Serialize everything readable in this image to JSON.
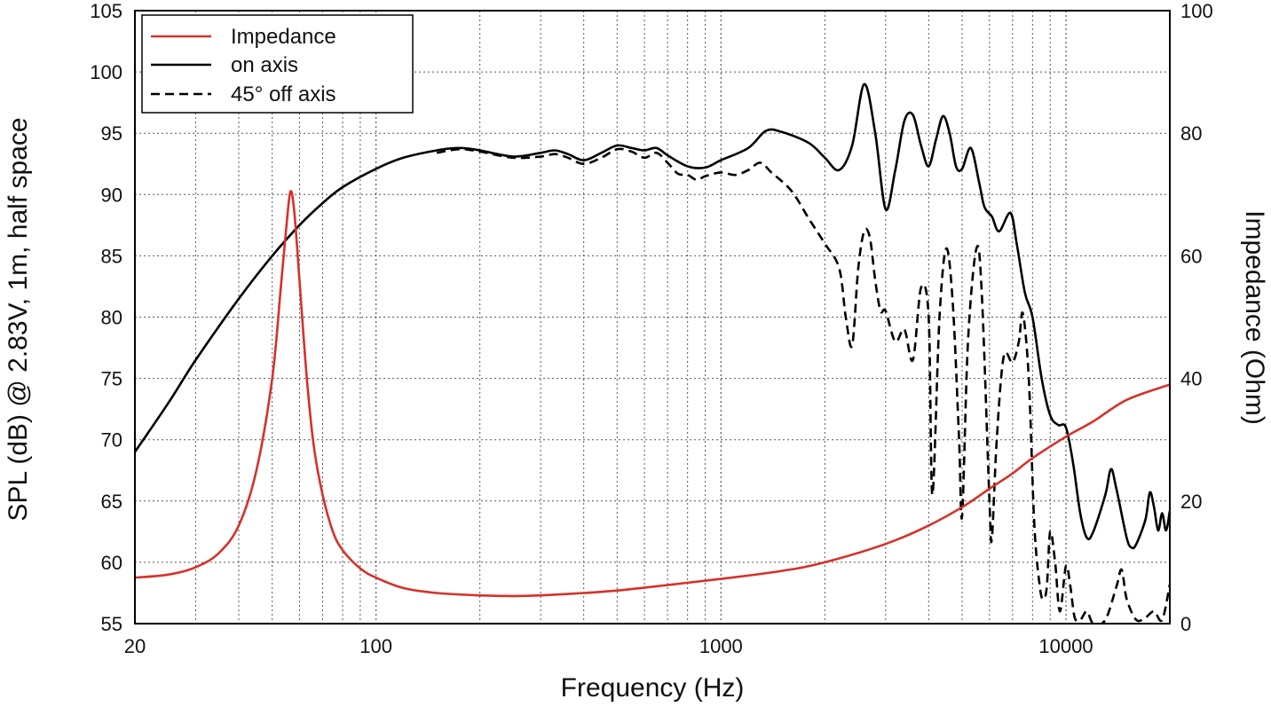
{
  "colors": {
    "impedance": "#d6312a",
    "spl": "#000000",
    "grid": "#555555"
  },
  "chart_data": {
    "type": "line",
    "x_scale": "log",
    "xlim": [
      20,
      20000
    ],
    "ylim": [
      55,
      105
    ],
    "y2lim": [
      0,
      100
    ],
    "xlabel": "Frequency (Hz)",
    "ylabel": "SPL (dB) @ 2.83V, 1m, half space",
    "y2label": "Impedance (Ohm)",
    "x_ticks": [
      20,
      100,
      1000,
      10000
    ],
    "x_tick_labels": [
      "20",
      "100",
      "1000",
      "10000"
    ],
    "y_ticks": [
      55,
      60,
      65,
      70,
      75,
      80,
      85,
      90,
      95,
      100,
      105
    ],
    "y2_ticks": [
      0,
      20,
      40,
      60,
      80,
      100
    ],
    "grid": true,
    "legend_position": "top-left",
    "series": [
      {
        "name": "Impedance",
        "axis": "right",
        "style": "solid",
        "points": [
          [
            20,
            7.5
          ],
          [
            25,
            8
          ],
          [
            30,
            9.2
          ],
          [
            35,
            11.5
          ],
          [
            40,
            16
          ],
          [
            45,
            25
          ],
          [
            50,
            40
          ],
          [
            53,
            55
          ],
          [
            55,
            65
          ],
          [
            56.5,
            70.5
          ],
          [
            58,
            67
          ],
          [
            60,
            56
          ],
          [
            63,
            40
          ],
          [
            66,
            29
          ],
          [
            70,
            21
          ],
          [
            75,
            15
          ],
          [
            80,
            12
          ],
          [
            90,
            9
          ],
          [
            100,
            7.5
          ],
          [
            120,
            5.8
          ],
          [
            150,
            5
          ],
          [
            200,
            4.6
          ],
          [
            250,
            4.5
          ],
          [
            300,
            4.6
          ],
          [
            400,
            5
          ],
          [
            500,
            5.4
          ],
          [
            700,
            6.3
          ],
          [
            1000,
            7.3
          ],
          [
            1500,
            8.6
          ],
          [
            2000,
            10
          ],
          [
            3000,
            13
          ],
          [
            4000,
            16
          ],
          [
            5000,
            19
          ],
          [
            6000,
            22
          ],
          [
            7000,
            24.5
          ],
          [
            8000,
            27
          ],
          [
            10000,
            30.5
          ],
          [
            12000,
            33
          ],
          [
            15000,
            36.5
          ],
          [
            20000,
            39
          ]
        ]
      },
      {
        "name": "on axis",
        "axis": "left",
        "style": "solid",
        "points": [
          [
            20,
            69
          ],
          [
            25,
            73
          ],
          [
            30,
            76.5
          ],
          [
            40,
            81.5
          ],
          [
            50,
            85
          ],
          [
            60,
            87.5
          ],
          [
            70,
            89.3
          ],
          [
            80,
            90.6
          ],
          [
            100,
            92.1
          ],
          [
            120,
            93
          ],
          [
            150,
            93.6
          ],
          [
            175,
            93.8
          ],
          [
            200,
            93.6
          ],
          [
            250,
            93.1
          ],
          [
            300,
            93.4
          ],
          [
            330,
            93.6
          ],
          [
            360,
            93.3
          ],
          [
            400,
            92.8
          ],
          [
            450,
            93.4
          ],
          [
            500,
            94
          ],
          [
            550,
            93.8
          ],
          [
            600,
            93.6
          ],
          [
            650,
            93.8
          ],
          [
            700,
            93.2
          ],
          [
            800,
            92.3
          ],
          [
            900,
            92.2
          ],
          [
            1000,
            92.8
          ],
          [
            1200,
            93.8
          ],
          [
            1350,
            95.2
          ],
          [
            1500,
            95.1
          ],
          [
            1800,
            94.2
          ],
          [
            2000,
            93
          ],
          [
            2200,
            92
          ],
          [
            2400,
            94
          ],
          [
            2600,
            99
          ],
          [
            2800,
            95
          ],
          [
            3000,
            88.8
          ],
          [
            3200,
            92
          ],
          [
            3400,
            96
          ],
          [
            3600,
            96.5
          ],
          [
            3800,
            94
          ],
          [
            4000,
            92.3
          ],
          [
            4200,
            94.5
          ],
          [
            4400,
            96.4
          ],
          [
            4600,
            95
          ],
          [
            4800,
            92.3
          ],
          [
            5000,
            92.1
          ],
          [
            5300,
            93.8
          ],
          [
            5600,
            91
          ],
          [
            5800,
            89
          ],
          [
            6100,
            88.2
          ],
          [
            6400,
            87
          ],
          [
            6900,
            88.5
          ],
          [
            7200,
            86
          ],
          [
            7600,
            82
          ],
          [
            8000,
            80
          ],
          [
            8500,
            75
          ],
          [
            9000,
            72
          ],
          [
            9500,
            71.2
          ],
          [
            10000,
            71
          ],
          [
            10500,
            68
          ],
          [
            11000,
            64
          ],
          [
            11500,
            62
          ],
          [
            12000,
            62.5
          ],
          [
            13000,
            65.5
          ],
          [
            13500,
            67.6
          ],
          [
            14000,
            66
          ],
          [
            15000,
            62
          ],
          [
            15500,
            61.2
          ],
          [
            16000,
            61.5
          ],
          [
            17000,
            63.5
          ],
          [
            17500,
            65.7
          ],
          [
            18000,
            64.5
          ],
          [
            18500,
            62.6
          ],
          [
            19000,
            64
          ],
          [
            19500,
            62.6
          ],
          [
            20000,
            64.2
          ]
        ]
      },
      {
        "name": "45° off axis",
        "axis": "left",
        "style": "dashed",
        "points": [
          [
            150,
            93.4
          ],
          [
            175,
            93.7
          ],
          [
            200,
            93.5
          ],
          [
            250,
            93
          ],
          [
            300,
            93.1
          ],
          [
            330,
            93.3
          ],
          [
            360,
            93
          ],
          [
            400,
            92.5
          ],
          [
            450,
            93
          ],
          [
            500,
            93.7
          ],
          [
            550,
            93.5
          ],
          [
            600,
            93
          ],
          [
            650,
            93.4
          ],
          [
            700,
            92.6
          ],
          [
            750,
            91.7
          ],
          [
            800,
            91.6
          ],
          [
            850,
            91.2
          ],
          [
            900,
            91.5
          ],
          [
            1000,
            91.8
          ],
          [
            1100,
            91.6
          ],
          [
            1200,
            92
          ],
          [
            1300,
            92.6
          ],
          [
            1400,
            91.8
          ],
          [
            1600,
            90.3
          ],
          [
            1800,
            88
          ],
          [
            2000,
            86
          ],
          [
            2200,
            84
          ],
          [
            2300,
            80
          ],
          [
            2400,
            77.7
          ],
          [
            2500,
            84
          ],
          [
            2600,
            87
          ],
          [
            2700,
            86.5
          ],
          [
            2800,
            83
          ],
          [
            2900,
            80.5
          ],
          [
            3000,
            80.5
          ],
          [
            3200,
            78
          ],
          [
            3400,
            79
          ],
          [
            3600,
            76.5
          ],
          [
            3800,
            82.4
          ],
          [
            4000,
            80
          ],
          [
            4100,
            65.5
          ],
          [
            4300,
            80
          ],
          [
            4500,
            85.6
          ],
          [
            4700,
            81
          ],
          [
            4900,
            70
          ],
          [
            5000,
            63.8
          ],
          [
            5200,
            78
          ],
          [
            5500,
            85.6
          ],
          [
            5700,
            82
          ],
          [
            6000,
            65
          ],
          [
            6100,
            62
          ],
          [
            6300,
            70
          ],
          [
            6600,
            76.8
          ],
          [
            7000,
            76.3
          ],
          [
            7300,
            78
          ],
          [
            7500,
            80.3
          ],
          [
            7800,
            75
          ],
          [
            8100,
            63
          ],
          [
            8400,
            58
          ],
          [
            8600,
            57
          ],
          [
            8800,
            58
          ],
          [
            9000,
            62.5
          ],
          [
            9300,
            60
          ],
          [
            9600,
            56
          ],
          [
            10000,
            59.7
          ],
          [
            10300,
            58
          ],
          [
            10600,
            55.5
          ],
          [
            11000,
            55.3
          ],
          [
            11500,
            56
          ],
          [
            12000,
            55
          ],
          [
            13000,
            55.3
          ],
          [
            14000,
            58
          ],
          [
            14500,
            59.4
          ],
          [
            15000,
            57
          ],
          [
            16000,
            55.3
          ],
          [
            17000,
            55.5
          ],
          [
            18000,
            56
          ],
          [
            19000,
            55.3
          ],
          [
            20000,
            58.2
          ]
        ]
      }
    ]
  }
}
